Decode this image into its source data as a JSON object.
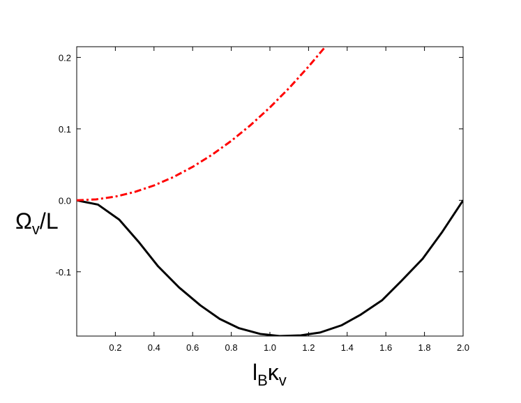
{
  "chart_data": {
    "type": "line",
    "title": "",
    "xlabel": {
      "main": "l",
      "sub1": "B",
      "main2": "κ",
      "sub2": "v"
    },
    "ylabel": {
      "main": "Ω",
      "sub": "v",
      "rest": "/L"
    },
    "xlim": [
      0.0,
      2.0
    ],
    "ylim": [
      -0.19,
      0.215
    ],
    "xticks": [
      0.2,
      0.4,
      0.6,
      0.8,
      1.0,
      1.2,
      1.4,
      1.6,
      1.8,
      2.0
    ],
    "xtick_labels": [
      "0.2",
      "0.4",
      "0.6",
      "0.8",
      "1.0",
      "1.2",
      "1.4",
      "1.6",
      "1.8",
      "2.0"
    ],
    "yticks": [
      0.2,
      0.1,
      0.0,
      -0.1
    ],
    "ytick_labels": [
      "0.2",
      "0.1",
      "0.0",
      "-0.1"
    ],
    "grid": false,
    "series": [
      {
        "style": "solid",
        "color": "#000000",
        "x": [
          0.0,
          0.11,
          0.22,
          0.32,
          0.42,
          0.53,
          0.64,
          0.74,
          0.84,
          0.95,
          1.05,
          1.16,
          1.26,
          1.37,
          1.47,
          1.58,
          1.68,
          1.79,
          1.89,
          2.0
        ],
        "y": [
          0.0,
          -0.006,
          -0.027,
          -0.058,
          -0.092,
          -0.122,
          -0.147,
          -0.166,
          -0.179,
          -0.187,
          -0.19,
          -0.189,
          -0.185,
          -0.175,
          -0.16,
          -0.14,
          -0.113,
          -0.082,
          -0.045,
          0.0
        ]
      },
      {
        "style": "dashdot",
        "color": "#ff0000",
        "x": [
          0.0,
          0.1,
          0.2,
          0.3,
          0.4,
          0.5,
          0.6,
          0.7,
          0.8,
          0.9,
          1.0,
          1.1,
          1.2,
          1.29
        ],
        "y": [
          0.0,
          0.0013,
          0.0052,
          0.0117,
          0.0208,
          0.0325,
          0.0468,
          0.0637,
          0.0832,
          0.1053,
          0.13,
          0.1573,
          0.1872,
          0.216
        ]
      }
    ]
  }
}
